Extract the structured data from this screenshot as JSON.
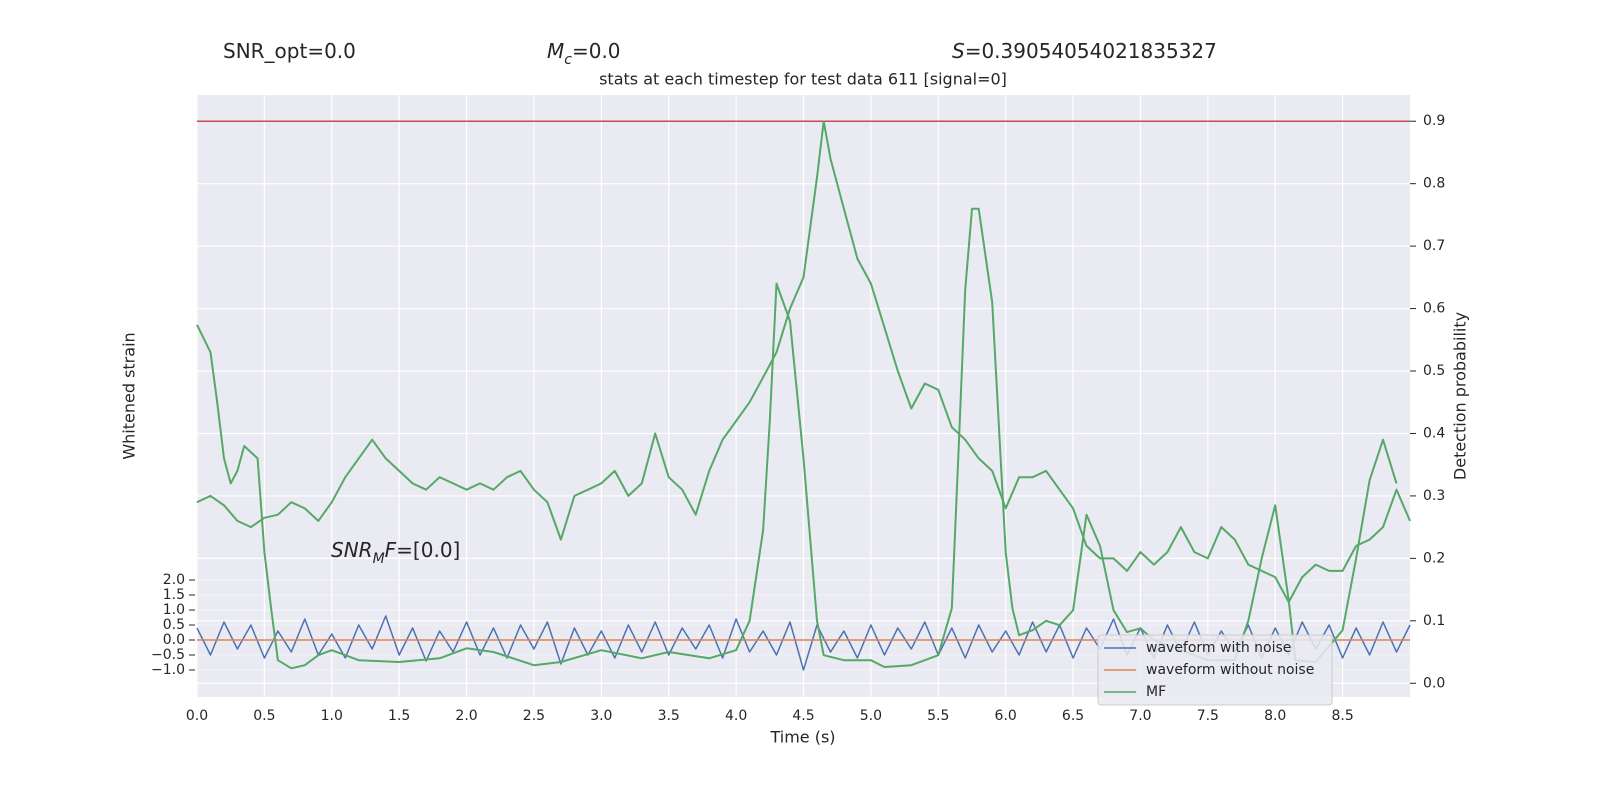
{
  "chart_data": {
    "type": "line",
    "title": "stats at each timestep for test data 611 [signal=0]",
    "annotations": [
      {
        "parts": [
          {
            "text": "SNR_opt=0.0"
          }
        ]
      },
      {
        "parts": [
          {
            "text": "M",
            "style": "italic"
          },
          {
            "text": "c",
            "style": "sub"
          },
          {
            "text": "=0.0"
          }
        ]
      },
      {
        "parts": [
          {
            "text": "S",
            "style": "italic"
          },
          {
            "text": "=0.39054054021835327"
          }
        ]
      },
      {
        "parts": [
          {
            "text": "SNR",
            "style": "italic"
          },
          {
            "text": "M",
            "style": "sub"
          },
          {
            "text": "F",
            "style": "italic"
          },
          {
            "text": "=[0.0]"
          }
        ]
      }
    ],
    "xlabel": "Time (s)",
    "ylabel": "Whitened strain",
    "y2label": "Detection probability",
    "xlim": [
      0,
      9.0
    ],
    "xticks": [
      {
        "value": 0,
        "label": "0.0"
      },
      0.5,
      {
        "value": 1,
        "label": "1.0"
      },
      1.5,
      {
        "value": 2,
        "label": "2.0"
      },
      2.5,
      {
        "value": 3,
        "label": "3.0"
      },
      3.5,
      {
        "value": 4,
        "label": "4.0"
      },
      4.5,
      {
        "value": 5,
        "label": "5.0"
      },
      5.5,
      {
        "value": 6,
        "label": "6.0"
      },
      6.5,
      {
        "value": 7,
        "label": "7.0"
      },
      7.5,
      {
        "value": 8,
        "label": "8.0"
      },
      8.5
    ],
    "ylim": [
      -1.9,
      18.17
    ],
    "yticks": [
      {
        "value": -1,
        "label": "−1.0"
      },
      {
        "value": -0.5,
        "label": "−0.5"
      },
      {
        "value": 0,
        "label": "0.0"
      },
      0.5,
      {
        "value": 1,
        "label": "1.0"
      },
      1.5,
      {
        "value": 2,
        "label": "2.0"
      }
    ],
    "y2lim": [
      -0.022,
      0.942
    ],
    "y2ticks": [
      {
        "value": 0,
        "label": "0.0"
      },
      0.1,
      0.2,
      0.3,
      0.4,
      0.5,
      0.6,
      0.7,
      0.8,
      0.9
    ],
    "grid": true,
    "legend": "lower right",
    "hlines": [
      {
        "value": 0.9,
        "color": "#c44e52",
        "axis": "y2"
      }
    ],
    "series": [
      {
        "name": "waveform with noise",
        "color": "#4c72b0",
        "x": [
          0,
          0.1,
          0.2,
          0.3,
          0.4,
          0.5,
          0.6,
          0.7,
          0.8,
          0.9,
          1,
          1.1,
          1.2,
          1.3,
          1.4,
          1.5,
          1.6,
          1.7,
          1.8,
          1.9,
          2,
          2.1,
          2.2,
          2.3,
          2.4,
          2.5,
          2.6,
          2.7,
          2.8,
          2.9,
          3,
          3.1,
          3.2,
          3.3,
          3.4,
          3.5,
          3.6,
          3.7,
          3.8,
          3.9,
          4,
          4.1,
          4.2,
          4.3,
          4.4,
          4.5,
          4.6,
          4.7,
          4.8,
          4.9,
          5,
          5.1,
          5.2,
          5.3,
          5.4,
          5.5,
          5.6,
          5.7,
          5.8,
          5.9,
          6,
          6.1,
          6.2,
          6.3,
          6.4,
          6.5,
          6.6,
          6.7,
          6.8,
          6.9,
          7,
          7.1,
          7.2,
          7.3,
          7.4,
          7.5,
          7.6,
          7.7,
          7.8,
          7.9,
          8,
          8.1,
          8.2,
          8.3,
          8.4,
          8.5,
          8.6,
          8.7,
          8.8,
          8.9,
          9
        ],
        "values": [
          0.4,
          -0.5,
          0.6,
          -0.3,
          0.5,
          -0.6,
          0.3,
          -0.4,
          0.7,
          -0.5,
          0.2,
          -0.6,
          0.5,
          -0.3,
          0.8,
          -0.5,
          0.4,
          -0.7,
          0.3,
          -0.4,
          0.6,
          -0.5,
          0.4,
          -0.6,
          0.5,
          -0.3,
          0.6,
          -0.8,
          0.4,
          -0.5,
          0.3,
          -0.6,
          0.5,
          -0.4,
          0.6,
          -0.5,
          0.4,
          -0.3,
          0.5,
          -0.6,
          0.7,
          -0.4,
          0.3,
          -0.5,
          0.6,
          -1.0,
          0.5,
          -0.4,
          0.3,
          -0.6,
          0.5,
          -0.5,
          0.4,
          -0.3,
          0.6,
          -0.5,
          0.4,
          -0.6,
          0.5,
          -0.4,
          0.3,
          -0.5,
          0.6,
          -0.4,
          0.5,
          -0.6,
          0.4,
          -0.3,
          0.7,
          -0.5,
          0.4,
          -0.6,
          0.5,
          -0.4,
          0.6,
          -0.5,
          0.3,
          -0.4,
          0.5,
          -0.6,
          0.4,
          -0.5,
          0.6,
          -0.3,
          0.5,
          -0.6,
          0.4,
          -0.5,
          0.6,
          -0.4,
          0.5
        ]
      },
      {
        "name": "waveform without noise",
        "color": "#dd8452",
        "x": [
          0,
          9
        ],
        "values": [
          0,
          0
        ]
      },
      {
        "name": "MF",
        "color": "#55a868",
        "axis": "y2",
        "x": [
          0,
          0.1,
          0.15,
          0.2,
          0.25,
          0.3,
          0.35,
          0.45,
          0.5,
          0.55,
          0.6,
          0.7,
          0.8,
          0.9,
          1.0,
          1.1,
          1.2,
          1.5,
          1.8,
          2.0,
          2.2,
          2.5,
          2.7,
          3.0,
          3.3,
          3.5,
          3.8,
          4.0,
          4.1,
          4.2,
          4.25,
          4.3,
          4.4,
          4.5,
          4.6,
          4.65,
          4.8,
          5.0,
          5.1,
          5.3,
          5.5,
          5.6,
          5.65,
          5.7,
          5.75,
          5.8,
          5.9,
          6.0,
          6.05,
          6.1,
          6.2,
          6.3,
          6.4,
          6.5,
          6.6,
          6.7,
          6.8,
          6.9,
          7.0,
          7.1,
          7.3,
          7.5,
          7.7,
          7.8,
          7.9,
          8.0,
          8.1,
          8.15,
          8.3,
          8.5,
          8.6,
          8.7,
          8.8,
          8.9
        ],
        "values": [
          0.574,
          0.53,
          0.45,
          0.36,
          0.32,
          0.34,
          0.38,
          0.36,
          0.21,
          0.12,
          0.037,
          0.024,
          0.029,
          0.045,
          0.053,
          0.045,
          0.037,
          0.034,
          0.04,
          0.056,
          0.05,
          0.029,
          0.034,
          0.053,
          0.04,
          0.05,
          0.04,
          0.053,
          0.1,
          0.245,
          0.42,
          0.64,
          0.58,
          0.36,
          0.1,
          0.045,
          0.037,
          0.037,
          0.026,
          0.029,
          0.045,
          0.12,
          0.37,
          0.63,
          0.76,
          0.76,
          0.61,
          0.21,
          0.12,
          0.077,
          0.085,
          0.1,
          0.093,
          0.117,
          0.27,
          0.22,
          0.117,
          0.082,
          0.088,
          0.069,
          0.053,
          0.037,
          0.037,
          0.1,
          0.2,
          0.285,
          0.133,
          0.037,
          0.034,
          0.085,
          0.2,
          0.325,
          0.39,
          0.32
        ]
      },
      {
        "color": "#55a868",
        "axis": "y2",
        "x": [
          0,
          0.1,
          0.2,
          0.3,
          0.4,
          0.5,
          0.6,
          0.7,
          0.8,
          0.9,
          1,
          1.1,
          1.2,
          1.3,
          1.4,
          1.5,
          1.6,
          1.7,
          1.8,
          1.9,
          2,
          2.1,
          2.2,
          2.3,
          2.4,
          2.5,
          2.6,
          2.7,
          2.8,
          2.9,
          3,
          3.1,
          3.2,
          3.3,
          3.4,
          3.5,
          3.6,
          3.7,
          3.8,
          3.9,
          4,
          4.1,
          4.2,
          4.3,
          4.4,
          4.5,
          4.6,
          4.65,
          4.7,
          4.8,
          4.9,
          5,
          5.1,
          5.2,
          5.3,
          5.4,
          5.5,
          5.6,
          5.7,
          5.8,
          5.9,
          6,
          6.1,
          6.2,
          6.3,
          6.4,
          6.5,
          6.6,
          6.7,
          6.8,
          6.9,
          7,
          7.1,
          7.2,
          7.3,
          7.4,
          7.5,
          7.6,
          7.7,
          7.8,
          7.9,
          8,
          8.1,
          8.2,
          8.3,
          8.4,
          8.5,
          8.6,
          8.7,
          8.8,
          8.9,
          9
        ],
        "values": [
          0.29,
          0.3,
          0.285,
          0.26,
          0.25,
          0.265,
          0.27,
          0.29,
          0.28,
          0.26,
          0.29,
          0.33,
          0.36,
          0.39,
          0.36,
          0.34,
          0.32,
          0.31,
          0.33,
          0.32,
          0.31,
          0.32,
          0.31,
          0.33,
          0.34,
          0.31,
          0.29,
          0.23,
          0.3,
          0.31,
          0.32,
          0.34,
          0.3,
          0.32,
          0.4,
          0.33,
          0.31,
          0.27,
          0.34,
          0.39,
          0.42,
          0.45,
          0.49,
          0.53,
          0.6,
          0.65,
          0.81,
          0.9,
          0.84,
          0.76,
          0.68,
          0.64,
          0.57,
          0.5,
          0.44,
          0.48,
          0.47,
          0.41,
          0.39,
          0.36,
          0.34,
          0.28,
          0.33,
          0.33,
          0.34,
          0.31,
          0.28,
          0.22,
          0.2,
          0.2,
          0.18,
          0.21,
          0.19,
          0.21,
          0.25,
          0.21,
          0.2,
          0.25,
          0.23,
          0.19,
          0.18,
          0.17,
          0.13,
          0.17,
          0.19,
          0.18,
          0.18,
          0.22,
          0.23,
          0.25,
          0.31,
          0.26
        ]
      }
    ]
  }
}
